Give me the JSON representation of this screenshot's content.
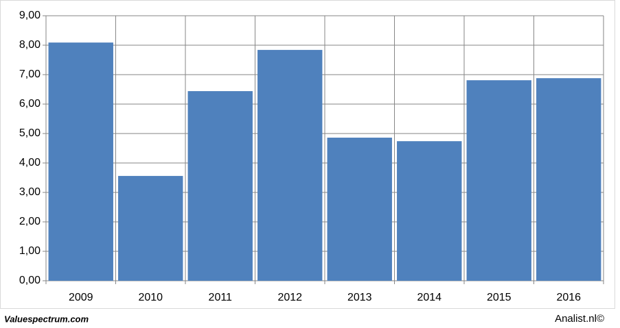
{
  "chart_data": {
    "type": "bar",
    "categories": [
      "2009",
      "2010",
      "2011",
      "2012",
      "2013",
      "2014",
      "2015",
      "2016"
    ],
    "values": [
      8.09,
      3.56,
      6.44,
      7.84,
      4.86,
      4.74,
      6.81,
      6.88
    ],
    "color": "#4f81bd",
    "ylim": [
      0,
      9
    ],
    "yticks": [
      {
        "value": 0,
        "label": "0,00"
      },
      {
        "value": 1,
        "label": "1,00"
      },
      {
        "value": 2,
        "label": "2,00"
      },
      {
        "value": 3,
        "label": "3,00"
      },
      {
        "value": 4,
        "label": "4,00"
      },
      {
        "value": 5,
        "label": "5,00"
      },
      {
        "value": 6,
        "label": "6,00"
      },
      {
        "value": 7,
        "label": "7,00"
      },
      {
        "value": 8,
        "label": "8,00"
      },
      {
        "value": 9,
        "label": "9,00"
      }
    ],
    "grid": true
  },
  "footer": {
    "left": "Valuespectrum.com",
    "right": "Analist.nl©"
  }
}
